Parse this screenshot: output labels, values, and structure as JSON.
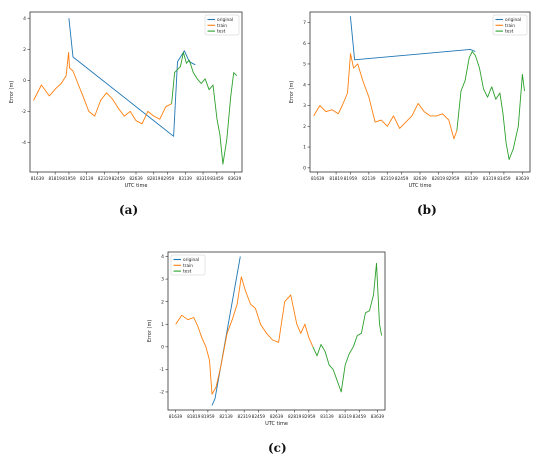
{
  "colors": {
    "original": "#1f77b4",
    "train": "#ff7f0e",
    "test": "#2ca02c"
  },
  "chart_data": [
    {
      "type": "line",
      "label": "(a)",
      "xlabel": "UTC time",
      "ylabel": "Error (m)",
      "xlim": [
        81564,
        83714
      ],
      "ylim": [
        -5.9,
        4.4
      ],
      "x_ticks": [
        81639,
        81819,
        81959,
        82139,
        82319,
        82459,
        82639,
        82819,
        82959,
        83139,
        83319,
        83459,
        83639
      ],
      "y_ticks": [
        -4,
        -2,
        0,
        2,
        4
      ],
      "legend": [
        "original",
        "train",
        "test"
      ],
      "legend_position": "top-right",
      "split_x": 83000,
      "series": [
        {
          "name": "original",
          "color": "#1f77b4",
          "x": [
            81959,
            82000,
            83020,
            83060,
            83130,
            83180,
            83240
          ],
          "y": [
            4.0,
            1.5,
            -3.6,
            1.2,
            1.9,
            1.2,
            1.0
          ]
        },
        {
          "name": "train",
          "color": "#ff7f0e",
          "x": [
            81600,
            81680,
            81760,
            81830,
            81880,
            81930,
            81955,
            81965,
            82000,
            82050,
            82100,
            82160,
            82220,
            82280,
            82340,
            82400,
            82460,
            82520,
            82580,
            82640,
            82700,
            82760,
            82820,
            82880,
            82940,
            83000
          ],
          "y": [
            -1.3,
            -0.3,
            -1.0,
            -0.5,
            -0.2,
            0.3,
            1.8,
            0.8,
            0.6,
            -0.2,
            -1.0,
            -2.0,
            -2.3,
            -1.3,
            -0.8,
            -1.2,
            -1.8,
            -2.3,
            -2.0,
            -2.6,
            -2.8,
            -2.0,
            -2.3,
            -2.5,
            -1.7,
            -1.5
          ]
        },
        {
          "name": "test",
          "color": "#2ca02c",
          "x": [
            83000,
            83030,
            83060,
            83090,
            83120,
            83150,
            83180,
            83220,
            83260,
            83300,
            83340,
            83380,
            83420,
            83460,
            83490,
            83520,
            83560,
            83600,
            83630,
            83660
          ],
          "y": [
            -1.5,
            0.5,
            0.7,
            0.9,
            1.8,
            1.1,
            1.3,
            0.5,
            0.1,
            -0.2,
            0.1,
            -0.6,
            -0.3,
            -2.5,
            -3.5,
            -5.4,
            -3.8,
            -1.0,
            0.5,
            0.3
          ]
        }
      ]
    },
    {
      "type": "line",
      "label": "(b)",
      "xlabel": "UTC time",
      "ylabel": "Error (m)",
      "xlim": [
        81564,
        83714
      ],
      "ylim": [
        -0.2,
        7.5
      ],
      "x_ticks": [
        81639,
        81819,
        81959,
        82139,
        82319,
        82459,
        82639,
        82819,
        82959,
        83139,
        83319,
        83459,
        83639
      ],
      "y_ticks": [
        0,
        1,
        2,
        3,
        4,
        5,
        6,
        7
      ],
      "legend": [
        "original",
        "train",
        "test"
      ],
      "legend_position": "top-right",
      "split_x": 83000,
      "series": [
        {
          "name": "original",
          "color": "#1f77b4",
          "x": [
            81959,
            82000,
            83130,
            83180
          ],
          "y": [
            7.3,
            5.2,
            5.7,
            5.6
          ]
        },
        {
          "name": "train",
          "color": "#ff7f0e",
          "x": [
            81600,
            81660,
            81720,
            81780,
            81840,
            81880,
            81930,
            81960,
            81990,
            82030,
            82080,
            82140,
            82200,
            82260,
            82320,
            82380,
            82440,
            82500,
            82560,
            82620,
            82680,
            82740,
            82800,
            82860,
            82920,
            82970,
            83000
          ],
          "y": [
            2.5,
            3.0,
            2.7,
            2.8,
            2.6,
            3.0,
            3.6,
            5.5,
            4.8,
            5.0,
            4.2,
            3.4,
            2.2,
            2.3,
            2.0,
            2.5,
            1.9,
            2.2,
            2.5,
            3.1,
            2.7,
            2.5,
            2.5,
            2.6,
            2.3,
            1.4,
            1.8
          ]
        },
        {
          "name": "test",
          "color": "#2ca02c",
          "x": [
            83000,
            83040,
            83080,
            83120,
            83150,
            83180,
            83220,
            83260,
            83300,
            83340,
            83380,
            83420,
            83450,
            83480,
            83510,
            83550,
            83600,
            83640,
            83660
          ],
          "y": [
            1.8,
            3.7,
            4.2,
            5.3,
            5.6,
            5.4,
            4.8,
            3.8,
            3.4,
            3.9,
            3.3,
            3.6,
            2.6,
            1.2,
            0.4,
            0.9,
            2.0,
            4.5,
            3.7
          ]
        }
      ]
    },
    {
      "type": "line",
      "label": "(c)",
      "xlabel": "UTC time",
      "ylabel": "Error (m)",
      "xlim": [
        81564,
        83714
      ],
      "ylim": [
        -2.8,
        4.2
      ],
      "x_ticks": [
        81639,
        81819,
        81959,
        82139,
        82319,
        82459,
        82639,
        82819,
        82959,
        83139,
        83319,
        83459,
        83639
      ],
      "y_ticks": [
        -2,
        -1,
        0,
        1,
        2,
        3,
        4
      ],
      "legend": [
        "original",
        "train",
        "test"
      ],
      "legend_position": "top-left",
      "split_x": 83000,
      "series": [
        {
          "name": "original",
          "color": "#1f77b4",
          "x": [
            82000,
            82030,
            82280
          ],
          "y": [
            -2.6,
            -2.3,
            4.0
          ]
        },
        {
          "name": "train",
          "color": "#ff7f0e",
          "x": [
            81640,
            81700,
            81760,
            81820,
            81860,
            81900,
            81940,
            81975,
            82000,
            82040,
            82090,
            82150,
            82200,
            82250,
            82290,
            82330,
            82380,
            82430,
            82480,
            82540,
            82600,
            82660,
            82720,
            82780,
            82840,
            82880,
            82920,
            82960,
            83000
          ],
          "y": [
            1.0,
            1.4,
            1.2,
            1.3,
            0.9,
            0.4,
            0.0,
            -0.6,
            -2.1,
            -1.8,
            -0.8,
            0.6,
            1.2,
            1.9,
            3.1,
            2.5,
            1.9,
            1.7,
            1.0,
            0.6,
            0.3,
            0.2,
            2.0,
            2.3,
            1.0,
            0.6,
            1.0,
            0.4,
            0.0
          ]
        },
        {
          "name": "test",
          "color": "#2ca02c",
          "x": [
            83000,
            83040,
            83080,
            83120,
            83160,
            83200,
            83240,
            83280,
            83320,
            83360,
            83400,
            83440,
            83480,
            83520,
            83560,
            83600,
            83630,
            83660,
            83680
          ],
          "y": [
            0.0,
            -0.4,
            0.1,
            -0.2,
            -0.8,
            -1.0,
            -1.5,
            -2.0,
            -0.8,
            -0.3,
            0.0,
            0.5,
            0.6,
            1.5,
            1.6,
            2.3,
            3.7,
            1.0,
            0.5
          ]
        }
      ]
    }
  ]
}
